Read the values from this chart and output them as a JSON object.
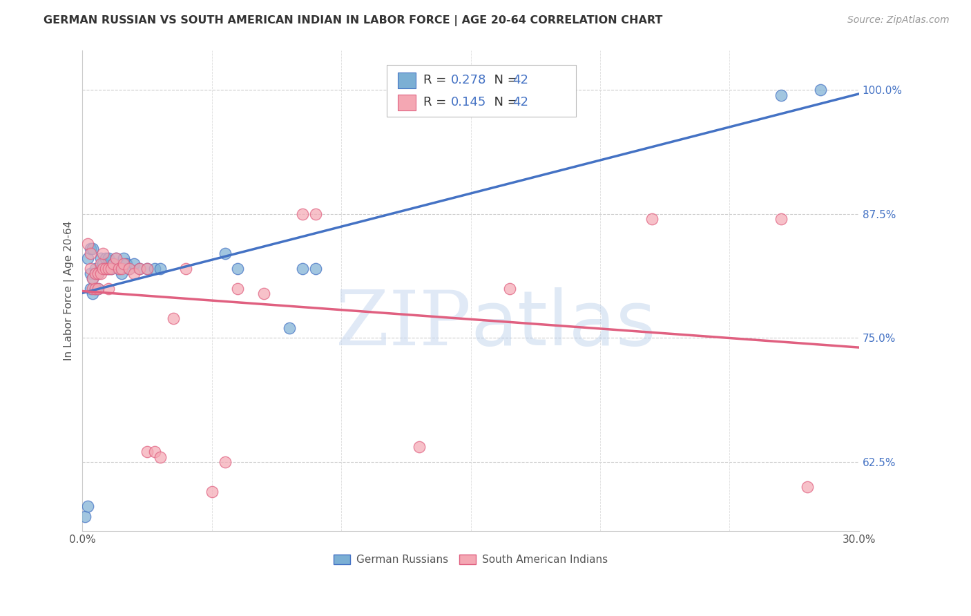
{
  "title": "GERMAN RUSSIAN VS SOUTH AMERICAN INDIAN IN LABOR FORCE | AGE 20-64 CORRELATION CHART",
  "source": "Source: ZipAtlas.com",
  "ylabel": "In Labor Force | Age 20-64",
  "xlim": [
    0.0,
    0.3
  ],
  "ylim": [
    0.555,
    1.04
  ],
  "xticks": [
    0.0,
    0.05,
    0.1,
    0.15,
    0.2,
    0.25,
    0.3
  ],
  "xticklabels": [
    "0.0%",
    "",
    "",
    "",
    "",
    "",
    "30.0%"
  ],
  "yticks_right": [
    0.625,
    0.75,
    0.875,
    1.0
  ],
  "ytick_labels_right": [
    "62.5%",
    "75.0%",
    "87.5%",
    "100.0%"
  ],
  "blue_color": "#7BAFD4",
  "pink_color": "#F4A7B3",
  "blue_line_color": "#4472C4",
  "pink_line_color": "#E06080",
  "watermark_zip": "ZIP",
  "watermark_atlas": "atlas",
  "german_russian_x": [
    0.001,
    0.002,
    0.002,
    0.003,
    0.003,
    0.003,
    0.004,
    0.004,
    0.004,
    0.005,
    0.005,
    0.005,
    0.006,
    0.006,
    0.007,
    0.007,
    0.008,
    0.008,
    0.009,
    0.009,
    0.01,
    0.01,
    0.011,
    0.012,
    0.013,
    0.014,
    0.015,
    0.016,
    0.017,
    0.018,
    0.02,
    0.022,
    0.025,
    0.028,
    0.03,
    0.055,
    0.06,
    0.08,
    0.085,
    0.09,
    0.27,
    0.285
  ],
  "german_russian_y": [
    0.57,
    0.58,
    0.83,
    0.8,
    0.815,
    0.84,
    0.795,
    0.81,
    0.84,
    0.8,
    0.815,
    0.82,
    0.8,
    0.815,
    0.82,
    0.83,
    0.82,
    0.825,
    0.82,
    0.83,
    0.82,
    0.83,
    0.82,
    0.825,
    0.83,
    0.82,
    0.815,
    0.83,
    0.825,
    0.82,
    0.825,
    0.82,
    0.82,
    0.82,
    0.82,
    0.835,
    0.82,
    0.76,
    0.82,
    0.82,
    0.995,
    1.0
  ],
  "south_american_indian_x": [
    0.002,
    0.003,
    0.003,
    0.004,
    0.004,
    0.005,
    0.005,
    0.006,
    0.006,
    0.007,
    0.007,
    0.008,
    0.008,
    0.009,
    0.01,
    0.01,
    0.011,
    0.012,
    0.013,
    0.014,
    0.015,
    0.016,
    0.018,
    0.02,
    0.022,
    0.025,
    0.025,
    0.028,
    0.03,
    0.035,
    0.04,
    0.05,
    0.055,
    0.06,
    0.07,
    0.085,
    0.09,
    0.13,
    0.165,
    0.22,
    0.27,
    0.28
  ],
  "south_american_indian_y": [
    0.845,
    0.835,
    0.82,
    0.8,
    0.81,
    0.8,
    0.815,
    0.8,
    0.815,
    0.815,
    0.825,
    0.82,
    0.835,
    0.82,
    0.8,
    0.82,
    0.82,
    0.825,
    0.83,
    0.82,
    0.82,
    0.825,
    0.82,
    0.815,
    0.82,
    0.82,
    0.635,
    0.635,
    0.63,
    0.77,
    0.82,
    0.595,
    0.625,
    0.8,
    0.795,
    0.875,
    0.875,
    0.64,
    0.8,
    0.87,
    0.87,
    0.6
  ],
  "legend_blue_R": "0.278",
  "legend_blue_N": "42",
  "legend_pink_R": "0.145",
  "legend_pink_N": "42",
  "legend_label_color": "#333333",
  "legend_value_color": "#4472C4",
  "title_fontsize": 11.5,
  "source_fontsize": 10,
  "tick_fontsize": 11,
  "legend_fontsize": 13
}
